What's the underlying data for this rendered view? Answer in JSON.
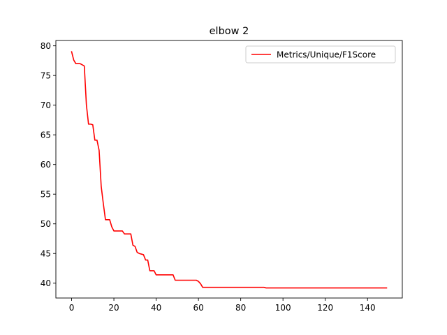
{
  "chart_data": {
    "type": "line",
    "title": "elbow 2",
    "xlabel": "",
    "ylabel": "",
    "xlim": [
      -7.45,
      156.45
    ],
    "ylim": [
      37.5,
      80.9
    ],
    "xticks": [
      0,
      20,
      40,
      60,
      80,
      100,
      120,
      140
    ],
    "yticks": [
      40,
      45,
      50,
      55,
      60,
      65,
      70,
      75,
      80
    ],
    "grid": false,
    "legend": {
      "position": "top-right"
    },
    "series": [
      {
        "name": "Metrics/Unique/F1Score",
        "color": "#ff0000",
        "x": [
          0,
          1,
          2,
          3,
          4,
          5,
          6,
          7,
          8,
          9,
          10,
          11,
          12,
          13,
          14,
          15,
          16,
          17,
          18,
          19,
          20,
          21,
          22,
          23,
          24,
          25,
          26,
          27,
          28,
          29,
          30,
          31,
          32,
          33,
          34,
          35,
          36,
          37,
          38,
          39,
          40,
          44,
          48,
          49,
          52,
          56,
          59,
          60,
          61,
          62,
          66,
          70,
          80,
          90,
          91,
          92,
          93,
          100,
          110,
          120,
          130,
          140,
          149
        ],
        "y": [
          79.0,
          77.6,
          77.0,
          77.0,
          77.0,
          76.8,
          76.6,
          70.0,
          66.8,
          66.8,
          66.7,
          64.1,
          64.1,
          62.4,
          56.3,
          53.4,
          50.7,
          50.7,
          50.7,
          49.5,
          48.8,
          48.8,
          48.8,
          48.8,
          48.8,
          48.3,
          48.3,
          48.3,
          48.3,
          46.4,
          46.2,
          45.2,
          45.0,
          44.9,
          44.8,
          43.9,
          43.9,
          42.1,
          42.1,
          42.1,
          41.4,
          41.4,
          41.4,
          40.5,
          40.5,
          40.5,
          40.5,
          40.3,
          39.9,
          39.3,
          39.3,
          39.3,
          39.3,
          39.3,
          39.3,
          39.2,
          39.2,
          39.2,
          39.2,
          39.2,
          39.2,
          39.2,
          39.2
        ]
      }
    ]
  }
}
